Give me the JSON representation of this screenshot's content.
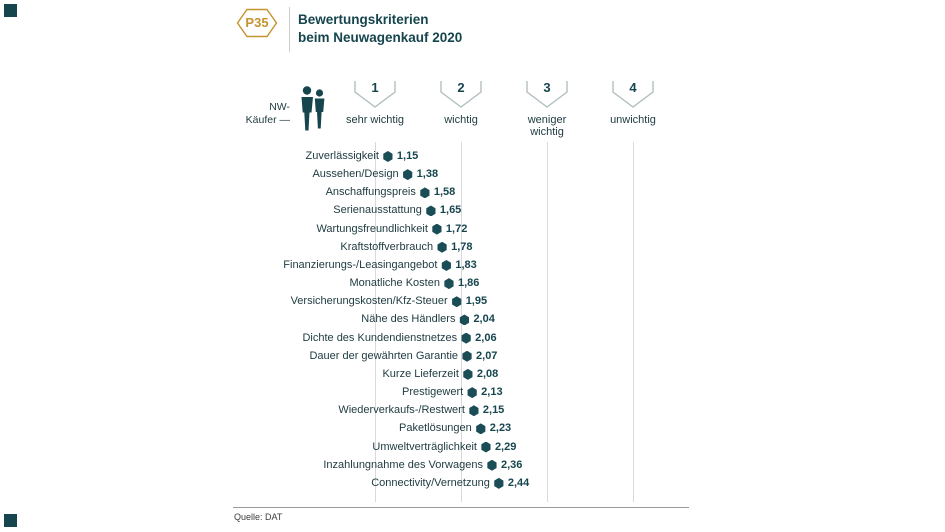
{
  "page": {
    "badge": "P35",
    "title_line1": "Bewertungskriterien",
    "title_line2": "beim Neuwagenkauf 2020",
    "axis_label": "NW-\nKäufer —",
    "source": "Quelle: DAT"
  },
  "colors": {
    "teal": "#16454e",
    "gold": "#c5932f",
    "gridline": "#d9d9d9",
    "chevron": "#b3bfc2"
  },
  "chart_data": {
    "type": "scatter",
    "title": "Bewertungskriterien beim Neuwagenkauf 2020",
    "group_label": "NW-Käufer",
    "scale": {
      "min": 1,
      "max": 4,
      "ticks": [
        {
          "value": 1,
          "label": "sehr wichtig"
        },
        {
          "value": 2,
          "label": "wichtig"
        },
        {
          "value": 3,
          "label": "weniger\nwichtig"
        },
        {
          "value": 4,
          "label": "unwichtig"
        }
      ]
    },
    "categories": [
      "Zuverlässigkeit",
      "Aussehen/Design",
      "Anschaffungspreis",
      "Serienausstattung",
      "Wartungsfreundlichkeit",
      "Kraftstoffverbrauch",
      "Finanzierungs-/Leasingangebot",
      "Monatliche Kosten",
      "Versicherungskosten/Kfz-Steuer",
      "Nähe des Händlers",
      "Dichte des Kundendienstnetzes",
      "Dauer der gewährten Garantie",
      "Kurze Lieferzeit",
      "Prestigewert",
      "Wiederverkaufs-/Restwert",
      "Paketlösungen",
      "Umweltverträglichkeit",
      "Inzahlungnahme des Vorwagens",
      "Connectivity/Vernetzung"
    ],
    "values": [
      1.15,
      1.38,
      1.58,
      1.65,
      1.72,
      1.78,
      1.83,
      1.86,
      1.95,
      2.04,
      2.06,
      2.07,
      2.08,
      2.13,
      2.15,
      2.23,
      2.29,
      2.36,
      2.44
    ],
    "value_labels": [
      "1,15",
      "1,38",
      "1,58",
      "1,65",
      "1,72",
      "1,78",
      "1,83",
      "1,86",
      "1,95",
      "2,04",
      "2,06",
      "2,07",
      "2,08",
      "2,13",
      "2,15",
      "2,23",
      "2,29",
      "2,36",
      "2,44"
    ]
  }
}
